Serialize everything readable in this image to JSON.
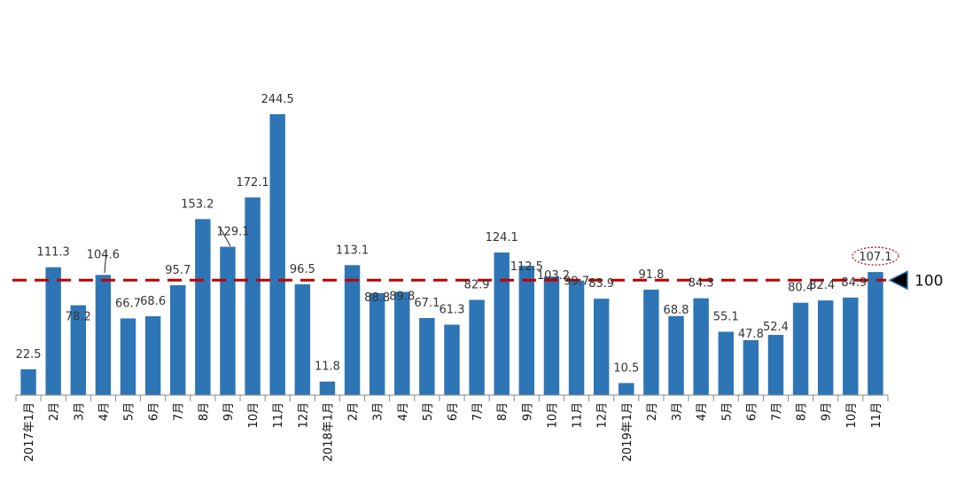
{
  "chart_data": {
    "type": "bar",
    "categories": [
      "2017年1月",
      "2月",
      "3月",
      "4月",
      "5月",
      "6月",
      "7月",
      "8月",
      "9月",
      "10月",
      "11月",
      "12月",
      "2018年1月",
      "2月",
      "3月",
      "4月",
      "5月",
      "6月",
      "7月",
      "8月",
      "9月",
      "10月",
      "11月",
      "12月",
      "2019年1月",
      "2月",
      "3月",
      "4月",
      "5月",
      "6月",
      "7月",
      "8月",
      "9月",
      "10月",
      "11月"
    ],
    "values": [
      22.5,
      111.3,
      78.2,
      104.6,
      66.7,
      68.6,
      95.7,
      153.2,
      129.1,
      172.1,
      244.5,
      96.5,
      11.8,
      113.1,
      88.8,
      89.8,
      67.1,
      61.3,
      82.9,
      124.1,
      112.5,
      103.2,
      99.7,
      83.9,
      10.5,
      91.8,
      68.8,
      84.3,
      55.1,
      47.8,
      52.4,
      80.4,
      82.4,
      84.9,
      107.1
    ],
    "value_labels": [
      "22.5",
      "111.3",
      "78.2",
      "104.6",
      "66.7",
      "68.6",
      "95.7",
      "153.2",
      "129.1",
      "172.1",
      "244.5",
      "96.5",
      "11.8",
      "113.1",
      "88.8",
      "89.8",
      "67.1",
      "61.3",
      "82.9",
      "124.1",
      "112.5",
      "103.2",
      "99.7",
      "83.9",
      "10.5",
      "91.8",
      "68.8",
      "84.3",
      "55.1",
      "47.8",
      "52.4",
      "80.4",
      "82.4",
      "84.9",
      "107.1"
    ],
    "reference_line": {
      "value": 100,
      "label": "100",
      "style": "dashed",
      "color": "#c00000"
    },
    "highlighted_label": "107.1",
    "ylim": [
      0,
      250
    ],
    "grid": false,
    "legend": "none",
    "title": "",
    "xlabel": "",
    "ylabel": "",
    "colors": {
      "bar": "#2e75b6",
      "reference": "#c00000",
      "highlight_ring": "#c00000",
      "marker": "#000000",
      "marker_edge": "#2e75b6",
      "axis": "#888888"
    }
  }
}
